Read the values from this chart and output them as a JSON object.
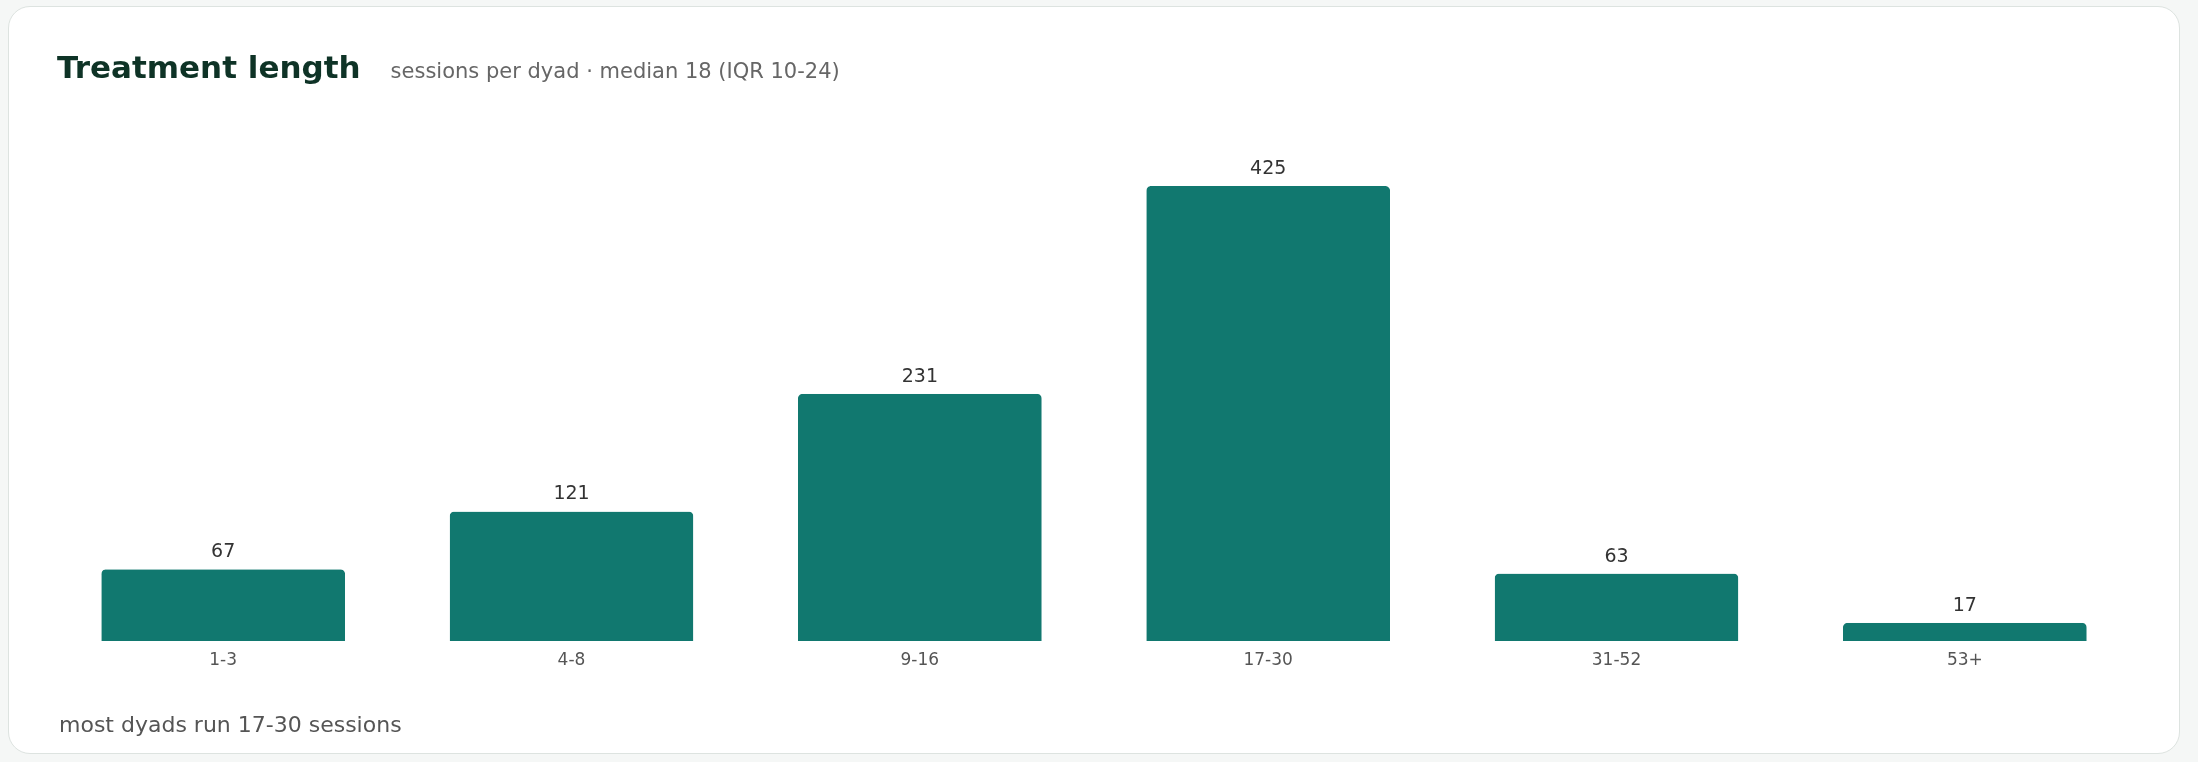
{
  "chart_data": {
    "type": "bar",
    "title": "Treatment length",
    "subtitle": "sessions per dyad · median 18 (IQR 10-24)",
    "categories": [
      "1-3",
      "4-8",
      "9-16",
      "17-30",
      "31-52",
      "53+"
    ],
    "values": [
      67,
      121,
      231,
      425,
      63,
      17
    ],
    "color": "#11786f",
    "data_labels": true,
    "annotations": [
      "most dyads run 17-30 sessions"
    ]
  }
}
